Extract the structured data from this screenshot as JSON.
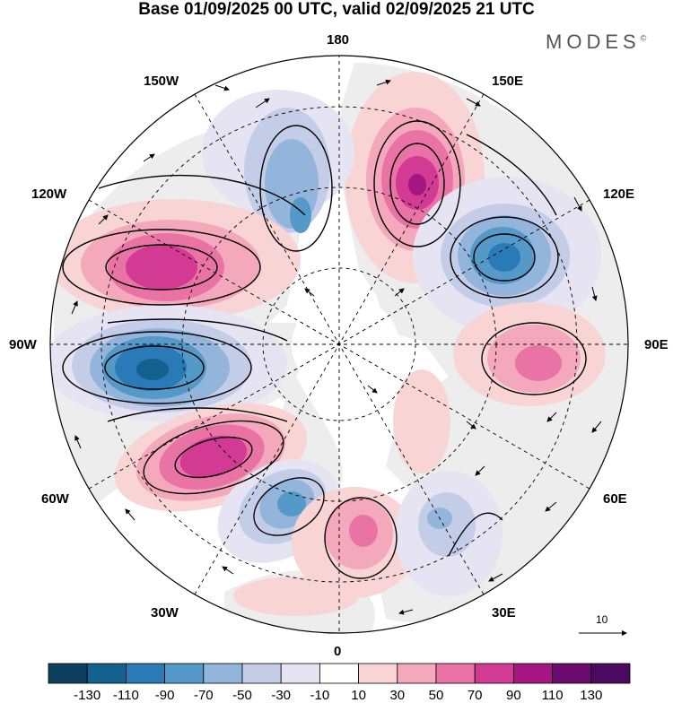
{
  "title": "Base 01/09/2025 00 UTC, valid 02/09/2025 21 UTC",
  "brand": "MODES",
  "brand_mark": "©",
  "longitude_labels": {
    "top": "180",
    "bottom": "0",
    "left": "90W",
    "right": "90E",
    "upper_left_1": "150W",
    "upper_left_2": "120W",
    "lower_left_1": "60W",
    "lower_left_2": "30W",
    "upper_right_1": "150E",
    "upper_right_2": "120E",
    "lower_right_1": "60E",
    "lower_right_2": "30E"
  },
  "reference_vector_label": "10",
  "colorbar": {
    "labels": [
      "-130",
      "-110",
      "-90",
      "-70",
      "-50",
      "-30",
      "-10",
      "10",
      "30",
      "50",
      "70",
      "90",
      "110",
      "130"
    ],
    "colors": [
      "#0d3f5e",
      "#15618e",
      "#2b7ab8",
      "#5499c8",
      "#93b5dc",
      "#c4cde7",
      "#e6e4f2",
      "#ffffff",
      "#f8d4d5",
      "#f3a9bb",
      "#ea73a6",
      "#d23a94",
      "#a61683",
      "#6a0b6d",
      "#4a0a62"
    ]
  },
  "colors": {
    "land": "#ededed",
    "ocean": "#ffffff",
    "coastline": "#666666",
    "grid": "#000000"
  }
}
